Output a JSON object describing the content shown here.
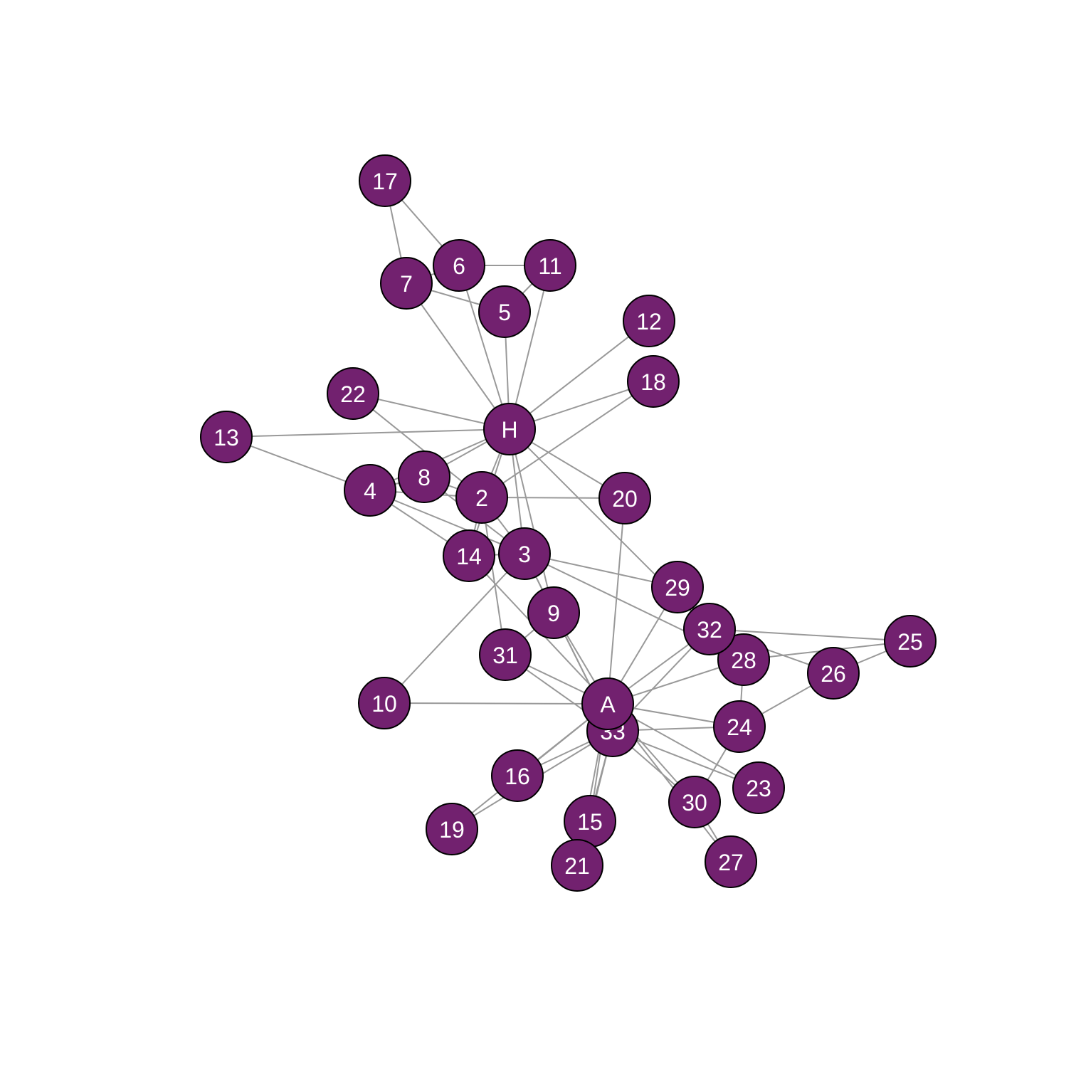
{
  "style": {
    "node_fill": "#72216f",
    "node_stroke": "#000000",
    "edge_color": "#999999",
    "label_color": "#ffffff"
  },
  "nodes": [
    "H",
    "2",
    "3",
    "4",
    "5",
    "6",
    "7",
    "8",
    "9",
    "10",
    "11",
    "12",
    "13",
    "14",
    "15",
    "16",
    "17",
    "18",
    "19",
    "20",
    "21",
    "22",
    "23",
    "24",
    "25",
    "26",
    "27",
    "28",
    "29",
    "30",
    "31",
    "32",
    "33",
    "A"
  ],
  "edges": [
    [
      "H",
      "2"
    ],
    [
      "H",
      "3"
    ],
    [
      "H",
      "4"
    ],
    [
      "H",
      "5"
    ],
    [
      "H",
      "6"
    ],
    [
      "H",
      "7"
    ],
    [
      "H",
      "8"
    ],
    [
      "H",
      "9"
    ],
    [
      "H",
      "11"
    ],
    [
      "H",
      "12"
    ],
    [
      "H",
      "13"
    ],
    [
      "H",
      "14"
    ],
    [
      "H",
      "18"
    ],
    [
      "H",
      "20"
    ],
    [
      "H",
      "22"
    ],
    [
      "H",
      "32"
    ],
    [
      "2",
      "3"
    ],
    [
      "2",
      "4"
    ],
    [
      "2",
      "8"
    ],
    [
      "2",
      "14"
    ],
    [
      "2",
      "18"
    ],
    [
      "2",
      "20"
    ],
    [
      "2",
      "22"
    ],
    [
      "2",
      "31"
    ],
    [
      "3",
      "4"
    ],
    [
      "3",
      "8"
    ],
    [
      "3",
      "9"
    ],
    [
      "3",
      "10"
    ],
    [
      "3",
      "14"
    ],
    [
      "3",
      "28"
    ],
    [
      "3",
      "29"
    ],
    [
      "3",
      "33"
    ],
    [
      "4",
      "8"
    ],
    [
      "4",
      "13"
    ],
    [
      "4",
      "14"
    ],
    [
      "5",
      "7"
    ],
    [
      "5",
      "11"
    ],
    [
      "6",
      "7"
    ],
    [
      "6",
      "11"
    ],
    [
      "6",
      "17"
    ],
    [
      "7",
      "17"
    ],
    [
      "9",
      "31"
    ],
    [
      "9",
      "33"
    ],
    [
      "9",
      "A"
    ],
    [
      "10",
      "A"
    ],
    [
      "14",
      "A"
    ],
    [
      "15",
      "33"
    ],
    [
      "15",
      "A"
    ],
    [
      "16",
      "33"
    ],
    [
      "16",
      "A"
    ],
    [
      "19",
      "33"
    ],
    [
      "19",
      "A"
    ],
    [
      "20",
      "A"
    ],
    [
      "21",
      "33"
    ],
    [
      "21",
      "A"
    ],
    [
      "23",
      "33"
    ],
    [
      "23",
      "A"
    ],
    [
      "24",
      "26"
    ],
    [
      "24",
      "28"
    ],
    [
      "24",
      "30"
    ],
    [
      "24",
      "33"
    ],
    [
      "24",
      "A"
    ],
    [
      "25",
      "26"
    ],
    [
      "25",
      "28"
    ],
    [
      "25",
      "32"
    ],
    [
      "26",
      "32"
    ],
    [
      "27",
      "30"
    ],
    [
      "27",
      "A"
    ],
    [
      "28",
      "A"
    ],
    [
      "29",
      "32"
    ],
    [
      "29",
      "A"
    ],
    [
      "30",
      "33"
    ],
    [
      "30",
      "A"
    ],
    [
      "31",
      "33"
    ],
    [
      "31",
      "A"
    ],
    [
      "32",
      "33"
    ],
    [
      "32",
      "A"
    ],
    [
      "33",
      "A"
    ]
  ]
}
